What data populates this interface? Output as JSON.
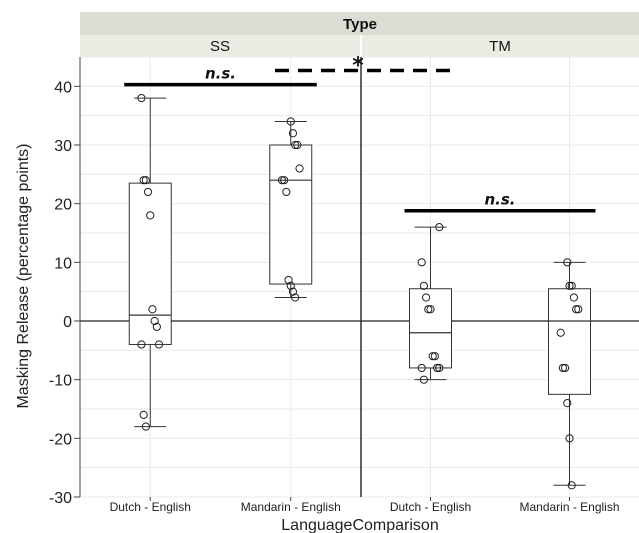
{
  "chart_data": {
    "type": "boxplot",
    "facet_title": "Type",
    "facets": [
      "SS",
      "TM"
    ],
    "categories": [
      "Dutch - English",
      "Mandarin - English"
    ],
    "xlabel": "LanguageComparison",
    "ylabel": "Masking Release (percentage points)",
    "ylim": [
      -30,
      45
    ],
    "yticks": [
      -30,
      -20,
      -10,
      0,
      10,
      20,
      30,
      40
    ],
    "ytick_labels": [
      "-30",
      "-20",
      "-10",
      "0",
      "10",
      "20",
      "30",
      "40"
    ],
    "grid": true,
    "boxes": [
      {
        "facet": "SS",
        "category": "Dutch - English",
        "min": -18,
        "q1": -4,
        "median": 1,
        "q3": 23.5,
        "max": 38,
        "points": [
          38,
          24,
          24,
          22,
          18,
          2,
          0,
          -1,
          -4,
          -4,
          -16,
          -18
        ]
      },
      {
        "facet": "SS",
        "category": "Mandarin - English",
        "min": 4,
        "q1": 6.3,
        "median": 24,
        "q3": 30,
        "max": 34,
        "points": [
          34,
          32,
          30,
          30,
          26,
          24,
          24,
          22,
          7,
          6,
          5,
          4
        ]
      },
      {
        "facet": "TM",
        "category": "Dutch - English",
        "min": -10,
        "q1": -8,
        "median": -2,
        "q3": 5.5,
        "max": 16,
        "points": [
          16,
          10,
          6,
          4,
          2,
          2,
          -6,
          -6,
          -8,
          -8,
          -8,
          -10
        ]
      },
      {
        "facet": "TM",
        "category": "Mandarin - English",
        "min": -28,
        "q1": -12.5,
        "median": 0,
        "q3": 5.5,
        "max": 10,
        "points": [
          10,
          6,
          6,
          4,
          2,
          2,
          -2,
          -8,
          -8,
          -14,
          -20,
          -28
        ]
      }
    ],
    "annotations": [
      {
        "text": "n.s.",
        "style": "solid",
        "from_facet": "SS",
        "from_cat": 0,
        "to_facet": "SS",
        "to_cat": 1,
        "y": 40.3
      },
      {
        "text": "*",
        "style": "dashed",
        "from_facet": "SS",
        "to_facet": "TM",
        "y": 42.7
      },
      {
        "text": "n.s.",
        "style": "solid",
        "from_facet": "TM",
        "from_cat": 0,
        "to_facet": "TM",
        "to_cat": 1,
        "y": 18.8
      }
    ]
  }
}
